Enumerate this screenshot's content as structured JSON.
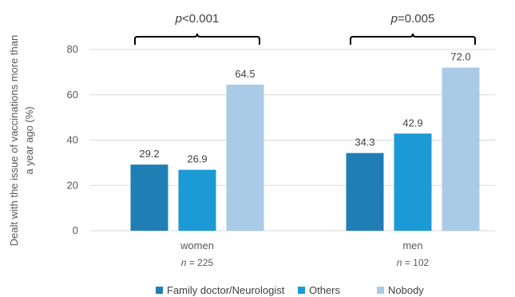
{
  "chart_data": {
    "type": "bar",
    "ylabel": "Dealt with the issue of vaccinations more than a year ago (%)",
    "ylim": [
      0,
      80
    ],
    "yticks": [
      0,
      20,
      40,
      60,
      80
    ],
    "grid": "horizontal",
    "legend_position": "bottom",
    "categories": [
      "women",
      "men"
    ],
    "category_n": [
      "225",
      "102"
    ],
    "p_values": [
      "0.001",
      "0.005"
    ],
    "p_operators": [
      "<",
      "="
    ],
    "series": [
      {
        "name": "Family doctor/Neurologist",
        "color": "#1f7fb4",
        "values": [
          29.2,
          34.3
        ],
        "labels": [
          "29.2",
          "34.3"
        ]
      },
      {
        "name": "Others",
        "color": "#1b9ad6",
        "values": [
          26.9,
          42.9
        ],
        "labels": [
          "26.9",
          "42.9"
        ]
      },
      {
        "name": "Nobody",
        "color": "#a9cbe7",
        "values": [
          64.5,
          72.0
        ],
        "labels": [
          "64.5",
          "72.0"
        ]
      }
    ]
  }
}
